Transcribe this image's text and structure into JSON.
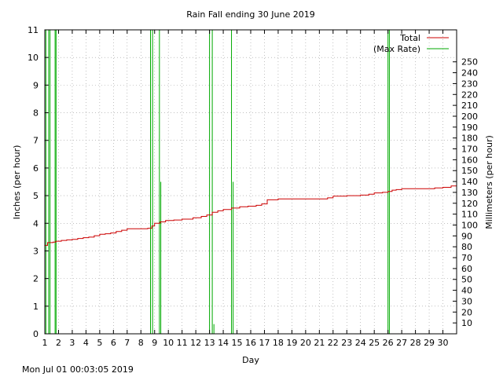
{
  "footer": {
    "timestamp": "Mon Jul 01 00:03:05 2019"
  },
  "chart_data": {
    "type": "line",
    "title": "Rain Fall ending 30 June 2019",
    "xlabel": "Day",
    "ylabel": "Inches (per hour)",
    "y2label": "Millimeters (per hour)",
    "xlim": [
      1,
      31
    ],
    "ylim": [
      0,
      11
    ],
    "y2lim": [
      0,
      279.4
    ],
    "x_ticks": [
      1,
      2,
      3,
      4,
      5,
      6,
      7,
      8,
      9,
      10,
      11,
      12,
      13,
      14,
      15,
      16,
      17,
      18,
      19,
      20,
      21,
      22,
      23,
      24,
      25,
      26,
      27,
      28,
      29,
      30
    ],
    "y_ticks": [
      0,
      1,
      2,
      3,
      4,
      5,
      6,
      7,
      8,
      9,
      10,
      11
    ],
    "y2_ticks": [
      10,
      20,
      30,
      40,
      50,
      60,
      70,
      80,
      90,
      100,
      110,
      120,
      130,
      140,
      150,
      160,
      170,
      180,
      190,
      200,
      210,
      220,
      230,
      240,
      250
    ],
    "grid": true,
    "legend_position": "top-right",
    "colors": {
      "total": "#cc0000",
      "max_rate": "#00aa00",
      "grid": "#999999"
    },
    "series": [
      {
        "name": "Total",
        "color": "#cc0000",
        "x": [
          1.0,
          1.2,
          1.4,
          1.6,
          1.8,
          2.0,
          2.2,
          2.6,
          3.0,
          3.4,
          3.8,
          4.2,
          4.6,
          5.0,
          5.4,
          5.8,
          6.2,
          6.6,
          7.0,
          7.5,
          8.0,
          8.5,
          8.8,
          9.0,
          9.4,
          9.8,
          10.4,
          11.0,
          11.8,
          12.4,
          12.8,
          13.2,
          13.6,
          14.0,
          14.6,
          15.2,
          15.8,
          16.4,
          16.8,
          17.2,
          18.0,
          19.0,
          20.0,
          21.0,
          21.6,
          22.0,
          23.0,
          24.0,
          24.6,
          25.0,
          25.6,
          26.0,
          26.3,
          26.6,
          27.0,
          28.0,
          29.0,
          29.4,
          30.0,
          30.6,
          31.0
        ],
        "y": [
          3.2,
          3.3,
          3.3,
          3.32,
          3.35,
          3.35,
          3.38,
          3.4,
          3.42,
          3.45,
          3.48,
          3.5,
          3.55,
          3.6,
          3.62,
          3.65,
          3.7,
          3.75,
          3.8,
          3.8,
          3.8,
          3.82,
          3.9,
          4.0,
          4.05,
          4.1,
          4.12,
          4.15,
          4.2,
          4.25,
          4.3,
          4.4,
          4.45,
          4.5,
          4.55,
          4.6,
          4.62,
          4.65,
          4.7,
          4.85,
          4.88,
          4.88,
          4.88,
          4.88,
          4.92,
          4.98,
          5.0,
          5.02,
          5.05,
          5.1,
          5.12,
          5.15,
          5.2,
          5.22,
          5.25,
          5.25,
          5.25,
          5.28,
          5.3,
          5.35,
          5.42
        ]
      },
      {
        "name": "(Max Rate)",
        "color": "#00aa00",
        "spikes": [
          {
            "x": 1.0,
            "y": 11
          },
          {
            "x": 1.08,
            "y": 11
          },
          {
            "x": 1.28,
            "y": 11
          },
          {
            "x": 1.38,
            "y": 11
          },
          {
            "x": 1.75,
            "y": 11
          },
          {
            "x": 1.82,
            "y": 11
          },
          {
            "x": 8.7,
            "y": 11
          },
          {
            "x": 8.85,
            "y": 11
          },
          {
            "x": 9.35,
            "y": 11
          },
          {
            "x": 9.45,
            "y": 5.5
          },
          {
            "x": 13.0,
            "y": 11
          },
          {
            "x": 13.2,
            "y": 11
          },
          {
            "x": 13.32,
            "y": 0.35
          },
          {
            "x": 14.6,
            "y": 11
          },
          {
            "x": 14.72,
            "y": 5.5
          },
          {
            "x": 26.0,
            "y": 11
          },
          {
            "x": 26.1,
            "y": 11
          }
        ]
      }
    ]
  }
}
